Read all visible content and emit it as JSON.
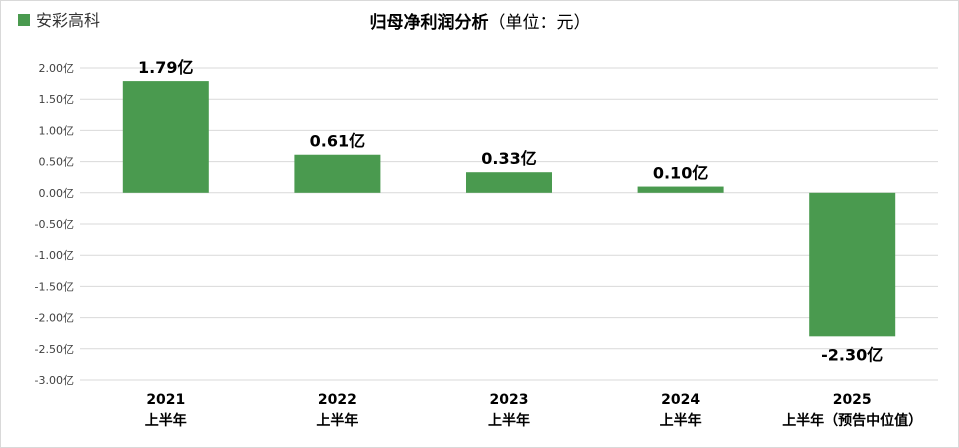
{
  "chart_data": {
    "type": "bar",
    "title": "归母净利润分析",
    "subtitle": "（单位：元）",
    "categories": [
      {
        "year": "2021",
        "period": "上半年"
      },
      {
        "year": "2022",
        "period": "上半年"
      },
      {
        "year": "2023",
        "period": "上半年"
      },
      {
        "year": "2024",
        "period": "上半年"
      },
      {
        "year": "2025",
        "period": "上半年（预告中位值）"
      }
    ],
    "series": [
      {
        "name": "安彩高科",
        "color": "#4a9a4f",
        "values": [
          1.79,
          0.61,
          0.33,
          0.1,
          -2.3
        ],
        "data_labels": [
          "1.79亿",
          "0.61亿",
          "0.33亿",
          "0.10亿",
          "-2.30亿"
        ]
      }
    ],
    "ylim": [
      -3.0,
      2.0
    ],
    "yticks": [
      2.0,
      1.5,
      1.0,
      0.5,
      0.0,
      -0.5,
      -1.0,
      -1.5,
      -2.0,
      -2.5,
      -3.0
    ],
    "ytick_labels": [
      "2.00亿",
      "1.50亿",
      "1.00亿",
      "0.50亿",
      "0.00亿",
      "-0.50亿",
      "-1.00亿",
      "-1.50亿",
      "-2.00亿",
      "-2.50亿",
      "-3.00亿"
    ],
    "xlabel": "",
    "ylabel": "",
    "grid": true,
    "legend": "top-left",
    "colors": {
      "grid": "#d9d9d9",
      "tick_text": "#404040"
    }
  }
}
